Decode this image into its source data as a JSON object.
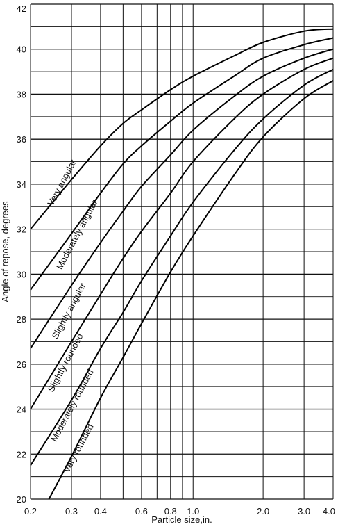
{
  "chart_data": {
    "type": "line",
    "title": "",
    "xlabel": "Particle size,in.",
    "ylabel": "Angle of repose, degrees",
    "x_scale": "log",
    "xlim": [
      0.2,
      4.0
    ],
    "ylim": [
      20,
      42
    ],
    "x_tick_labels": [
      {
        "value": 0.2,
        "label": "0.2"
      },
      {
        "value": 0.3,
        "label": "0.3"
      },
      {
        "value": 0.4,
        "label": "0.4"
      },
      {
        "value": 0.6,
        "label": "0.6"
      },
      {
        "value": 0.8,
        "label": "0.8"
      },
      {
        "value": 1.0,
        "label": "1.0"
      },
      {
        "value": 2.0,
        "label": "2.0"
      },
      {
        "value": 3.0,
        "label": "3.0"
      },
      {
        "value": 4.0,
        "label": "4.0"
      }
    ],
    "x_gridlines": [
      0.2,
      0.3,
      0.4,
      0.5,
      0.6,
      0.7,
      0.8,
      0.9,
      1.0,
      2.0,
      3.0,
      4.0
    ],
    "y_tick_labels": [
      20,
      22,
      24,
      26,
      28,
      30,
      32,
      34,
      36,
      38,
      40,
      42
    ],
    "y_gridlines": [
      20,
      21,
      22,
      23,
      24,
      25,
      26,
      27,
      28,
      29,
      30,
      31,
      32,
      33,
      34,
      35,
      36,
      37,
      38,
      39,
      40,
      41,
      42
    ],
    "grid": true,
    "series": [
      {
        "name": "Very angular",
        "points": [
          [
            0.2,
            32.0
          ],
          [
            0.3,
            34.2
          ],
          [
            0.4,
            35.7
          ],
          [
            0.5,
            36.7
          ],
          [
            0.6,
            37.3
          ],
          [
            0.8,
            38.2
          ],
          [
            1.0,
            38.8
          ],
          [
            1.5,
            39.7
          ],
          [
            2.0,
            40.3
          ],
          [
            3.0,
            40.8
          ],
          [
            4.0,
            40.9
          ]
        ]
      },
      {
        "name": "Moderately angular",
        "points": [
          [
            0.2,
            29.3
          ],
          [
            0.3,
            31.8
          ],
          [
            0.4,
            33.6
          ],
          [
            0.5,
            34.9
          ],
          [
            0.6,
            35.7
          ],
          [
            0.8,
            36.8
          ],
          [
            1.0,
            37.6
          ],
          [
            1.5,
            38.8
          ],
          [
            2.0,
            39.6
          ],
          [
            3.0,
            40.2
          ],
          [
            4.0,
            40.5
          ]
        ]
      },
      {
        "name": "Slightly angular",
        "points": [
          [
            0.2,
            26.7
          ],
          [
            0.3,
            29.5
          ],
          [
            0.4,
            31.4
          ],
          [
            0.5,
            32.8
          ],
          [
            0.6,
            33.9
          ],
          [
            0.8,
            35.3
          ],
          [
            1.0,
            36.4
          ],
          [
            1.5,
            37.9
          ],
          [
            2.0,
            38.8
          ],
          [
            3.0,
            39.6
          ],
          [
            4.0,
            40.0
          ]
        ]
      },
      {
        "name": "Slightly rounded",
        "points": [
          [
            0.2,
            24.0
          ],
          [
            0.3,
            27.0
          ],
          [
            0.4,
            29.1
          ],
          [
            0.5,
            30.7
          ],
          [
            0.6,
            31.9
          ],
          [
            0.8,
            33.6
          ],
          [
            1.0,
            35.0
          ],
          [
            1.5,
            36.9
          ],
          [
            2.0,
            38.0
          ],
          [
            3.0,
            39.1
          ],
          [
            4.0,
            39.6
          ]
        ]
      },
      {
        "name": "Moderately rounded",
        "points": [
          [
            0.2,
            21.5
          ],
          [
            0.3,
            24.4
          ],
          [
            0.4,
            26.7
          ],
          [
            0.5,
            28.3
          ],
          [
            0.6,
            29.7
          ],
          [
            0.8,
            31.7
          ],
          [
            1.0,
            33.2
          ],
          [
            1.5,
            35.5
          ],
          [
            2.0,
            36.9
          ],
          [
            3.0,
            38.4
          ],
          [
            4.0,
            39.1
          ]
        ]
      },
      {
        "name": "Very rounded",
        "points": [
          [
            0.24,
            20.0
          ],
          [
            0.3,
            21.9
          ],
          [
            0.4,
            24.5
          ],
          [
            0.5,
            26.3
          ],
          [
            0.6,
            27.8
          ],
          [
            0.8,
            30.1
          ],
          [
            1.0,
            31.7
          ],
          [
            1.5,
            34.4
          ],
          [
            2.0,
            36.1
          ],
          [
            3.0,
            37.8
          ],
          [
            4.0,
            38.6
          ]
        ]
      }
    ],
    "curve_labels": [
      {
        "text": "Very angular",
        "x": 0.28,
        "y": 34.0
      },
      {
        "text": "Moderately angular",
        "x": 0.325,
        "y": 31.7
      },
      {
        "text": "Slightly angular",
        "x": 0.3,
        "y": 28.3
      },
      {
        "text": "Slightly rounded",
        "x": 0.29,
        "y": 26.0
      },
      {
        "text": "Moderately rounded",
        "x": 0.31,
        "y": 24.1
      },
      {
        "text": "Very rounded",
        "x": 0.33,
        "y": 22.2
      }
    ]
  }
}
